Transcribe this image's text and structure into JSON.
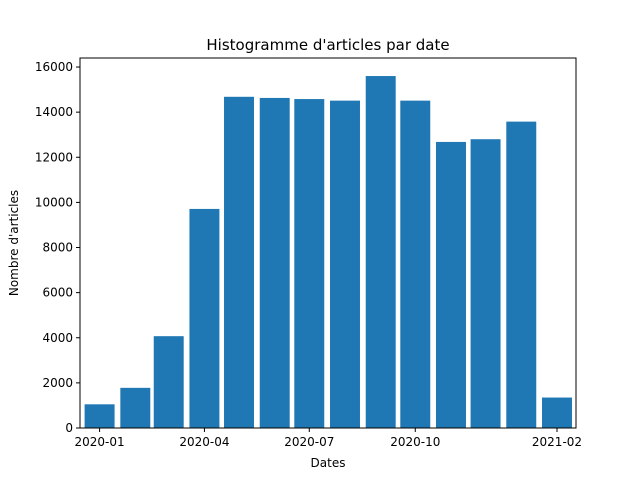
{
  "chart_data": {
    "type": "bar",
    "title": "Histogramme d'articles par date",
    "xlabel": "Dates",
    "ylabel": "Nombre d'articles",
    "bar_color": "#1f77b4",
    "categories": [
      "2020-01",
      "2020-02",
      "2020-03",
      "2020-04",
      "2020-05",
      "2020-06",
      "2020-07",
      "2020-08",
      "2020-09",
      "2020-10",
      "2020-11",
      "2020-12",
      "2021-01",
      "2021-02"
    ],
    "values": [
      1050,
      1780,
      4070,
      9710,
      14680,
      14630,
      14580,
      14510,
      15600,
      14510,
      12680,
      12800,
      13580,
      1350
    ],
    "x_ticks": [
      {
        "label": "2020-01",
        "at": "2020-01-01"
      },
      {
        "label": "2020-04",
        "at": "2020-04-01"
      },
      {
        "label": "2020-07",
        "at": "2020-07-01"
      },
      {
        "label": "2020-10",
        "at": "2020-10-01"
      },
      {
        "label": "2021-02",
        "at": "2021-02-01"
      }
    ],
    "y_ticks": [
      0,
      2000,
      4000,
      6000,
      8000,
      10000,
      12000,
      14000,
      16000
    ],
    "ylim": [
      0,
      16400
    ],
    "grid": false,
    "legend": "none"
  }
}
